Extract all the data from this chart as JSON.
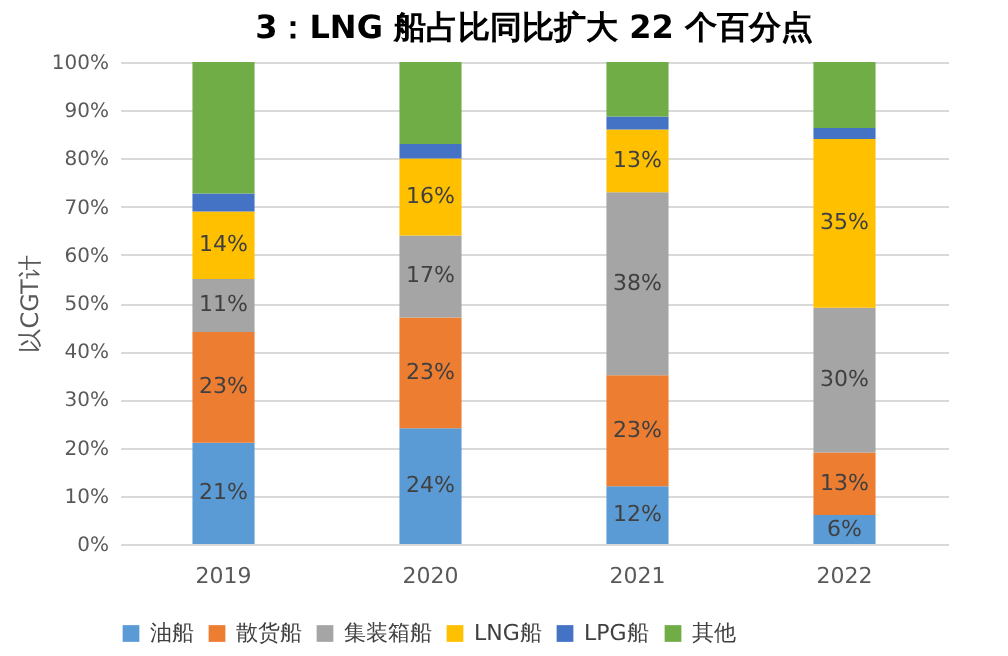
{
  "chart_data": {
    "type": "bar",
    "title": "3：LNG 船占比同比扩大 22 个百分点",
    "ylabel": "以CGT计",
    "categories": [
      "2019",
      "2020",
      "2021",
      "2022"
    ],
    "stacked": true,
    "series": [
      {
        "name": "油船",
        "color": "#5b9bd5",
        "values": [
          21,
          24,
          12,
          6
        ],
        "value_labels": [
          "21%",
          "24%",
          "12%",
          "6%"
        ]
      },
      {
        "name": "散货船",
        "color": "#ed7d31",
        "values": [
          23,
          23,
          23,
          13
        ],
        "value_labels": [
          "23%",
          "23%",
          "23%",
          "13%"
        ]
      },
      {
        "name": "集装箱船",
        "color": "#a5a5a5",
        "values": [
          11,
          17,
          38,
          30
        ],
        "value_labels": [
          "11%",
          "17%",
          "38%",
          "30%"
        ]
      },
      {
        "name": "LNG船",
        "color": "#ffc000",
        "values": [
          14,
          16,
          13,
          35
        ],
        "value_labels": [
          "14%",
          "16%",
          "13%",
          "35%"
        ]
      },
      {
        "name": "LPG船",
        "color": "#4472c4",
        "values": [
          3.7,
          3,
          2.7,
          2.3
        ]
      },
      {
        "name": "其他",
        "color": "#70ad47",
        "values": [
          27.3,
          17,
          11.3,
          13.7
        ]
      }
    ],
    "ylim": [
      0,
      100
    ],
    "yticks": [
      {
        "value": 0,
        "label": "0%"
      },
      {
        "value": 10,
        "label": "10%"
      },
      {
        "value": 20,
        "label": "20%"
      },
      {
        "value": 30,
        "label": "30%"
      },
      {
        "value": 40,
        "label": "40%"
      },
      {
        "value": 50,
        "label": "50%"
      },
      {
        "value": 60,
        "label": "60%"
      },
      {
        "value": 70,
        "label": "70%"
      },
      {
        "value": 80,
        "label": "80%"
      },
      {
        "value": 90,
        "label": "90%"
      },
      {
        "value": 100,
        "label": "100%"
      }
    ],
    "grid": "y",
    "legend": "bottom"
  }
}
